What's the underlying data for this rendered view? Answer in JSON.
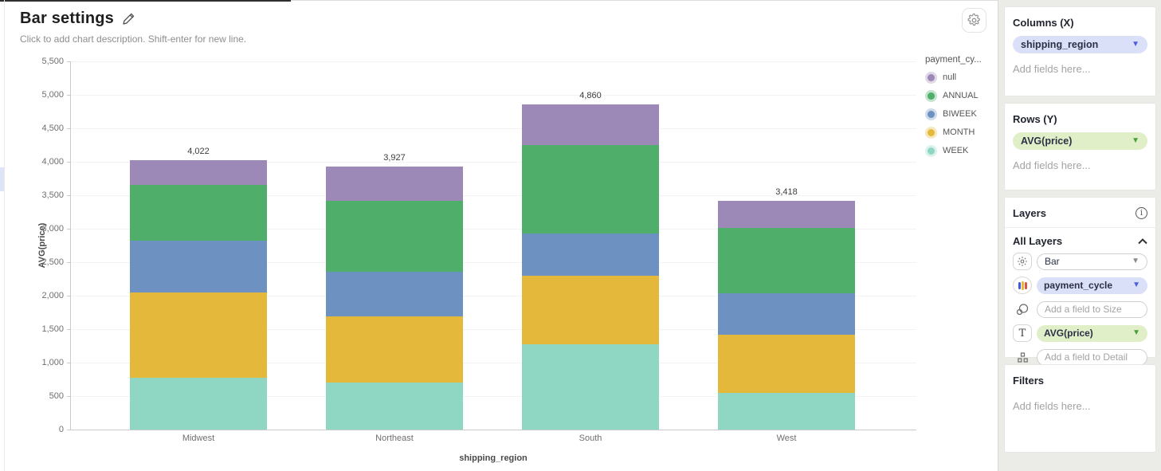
{
  "header": {
    "title": "Bar settings",
    "description_placeholder": "Click to add chart description. Shift-enter for new line."
  },
  "chart_data": {
    "type": "bar",
    "stacked": true,
    "categories": [
      "Midwest",
      "Northeast",
      "South",
      "West"
    ],
    "series": [
      {
        "name": "null",
        "color": "#9d89b8",
        "values": [
          370,
          511,
          615,
          401
        ]
      },
      {
        "name": "ANNUAL",
        "color": "#4fae6a",
        "values": [
          833,
          1056,
          1321,
          979
        ]
      },
      {
        "name": "BIWEEK",
        "color": "#6d92c1",
        "values": [
          767,
          672,
          623,
          623
        ]
      },
      {
        "name": "MONTH",
        "color": "#e4b93b",
        "values": [
          1278,
          980,
          1024,
          872
        ]
      },
      {
        "name": "WEEK",
        "color": "#8fd7c3",
        "values": [
          774,
          708,
          1277,
          543
        ]
      }
    ],
    "stack_order_bottom_to_top": [
      "WEEK",
      "MONTH",
      "BIWEEK",
      "ANNUAL",
      "null"
    ],
    "totals": [
      "4,022",
      "3,927",
      "4,860",
      "3,418"
    ],
    "xlabel": "shipping_region",
    "ylabel": "AVG(price)",
    "ylim": [
      0,
      5500
    ],
    "ytick_step": 500,
    "grid": true,
    "legend_position": "right",
    "legend_title": "payment_cy..."
  },
  "panel": {
    "columns": {
      "title": "Columns (X)",
      "field": "shipping_region",
      "placeholder": "Add fields here..."
    },
    "rows": {
      "title": "Rows (Y)",
      "field": "AVG(price)",
      "placeholder": "Add fields here..."
    },
    "layers": {
      "title": "Layers",
      "group_title": "All Layers",
      "chart_type": "Bar",
      "color_field": "payment_cycle",
      "size_placeholder": "Add a field to Size",
      "text_field": "AVG(price)",
      "detail_placeholder": "Add a field to Detail"
    },
    "filters": {
      "title": "Filters",
      "placeholder": "Add fields here..."
    }
  },
  "colors": {
    "lavender_pill": "#dbe0f9",
    "lavender_caret": "#4c5ede",
    "green_pill": "#e1efc9",
    "green_caret": "#46a13c",
    "palette_icon_bars": [
      "#4458d8",
      "#e8b931",
      "#d9534f"
    ]
  }
}
